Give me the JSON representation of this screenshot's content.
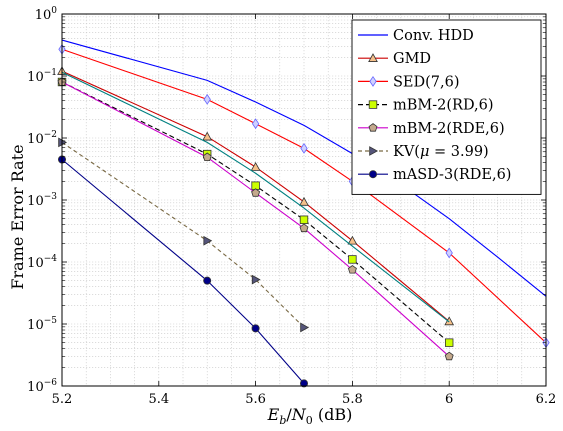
{
  "chart_data": {
    "type": "line",
    "title": "",
    "xlabel": "E_b/N_0 (dB)",
    "xlabel_parts": {
      "var_main": "E",
      "var_sub": "b",
      "slash": "/",
      "var_main2": "N",
      "var_sub2": "0",
      "unit": " (dB)"
    },
    "ylabel": "Frame Error Rate",
    "xlim": [
      5.2,
      6.2
    ],
    "ylim": [
      1e-06,
      1
    ],
    "yscale": "log",
    "grid": true,
    "legend_position": "top-right",
    "x_ticks": [
      {
        "value": 5.2,
        "label": "5.2"
      },
      {
        "value": 5.4,
        "label": "5.4"
      },
      {
        "value": 5.6,
        "label": "5.6"
      },
      {
        "value": 5.8,
        "label": "5.8"
      },
      {
        "value": 6.0,
        "label": "6"
      },
      {
        "value": 6.2,
        "label": "6.2"
      }
    ],
    "y_ticks": [
      {
        "value": 1,
        "base": "10",
        "exp": "0"
      },
      {
        "value": 0.1,
        "base": "10",
        "exp": "−1"
      },
      {
        "value": 0.01,
        "base": "10",
        "exp": "−2"
      },
      {
        "value": 0.001,
        "base": "10",
        "exp": "−3"
      },
      {
        "value": 0.0001,
        "base": "10",
        "exp": "−4"
      },
      {
        "value": 1e-05,
        "base": "10",
        "exp": "−5"
      },
      {
        "value": 1e-06,
        "base": "10",
        "exp": "−6"
      }
    ],
    "series": [
      {
        "name": "Conv. HDD",
        "color": "#0000ff",
        "dash": "none",
        "marker": "none",
        "x": [
          5.2,
          5.5,
          5.6,
          5.7,
          5.8,
          5.9,
          6.0,
          6.1,
          6.2
        ],
        "y": [
          0.38,
          0.085,
          0.038,
          0.016,
          0.0056,
          0.0018,
          0.0005,
          0.00012,
          2.8e-05
        ]
      },
      {
        "name": "GMD",
        "color": "#cc0000",
        "dash": "none",
        "marker": "triangle",
        "markerFill": "#f5c08a",
        "x": [
          5.2,
          5.5,
          5.6,
          5.7,
          5.8,
          6.0
        ],
        "y": [
          0.12,
          0.0105,
          0.0034,
          0.00093,
          0.00022,
          1.1e-05
        ]
      },
      {
        "name": "SED(7,6)",
        "color": "#ff0000",
        "dash": "none",
        "marker": "diamond",
        "markerFill": "#cfd0ff",
        "markerStroke": "#6666ff",
        "x": [
          5.2,
          5.5,
          5.6,
          5.7,
          5.8,
          6.0,
          6.2
        ],
        "y": [
          0.27,
          0.042,
          0.017,
          0.0068,
          0.002,
          0.00014,
          5e-06
        ]
      },
      {
        "name": "mBM-2(RD,6)",
        "color": "#000000",
        "dash": "5,3",
        "marker": "square",
        "markerFill": "#ccff00",
        "x": [
          5.2,
          5.5,
          5.6,
          5.7,
          5.8,
          6.0
        ],
        "y": [
          0.08,
          0.0055,
          0.0017,
          0.00048,
          0.00011,
          5e-06
        ]
      },
      {
        "name": "mBM-2(RDE,6)",
        "color": "#cc00cc",
        "dash": "none",
        "marker": "pentagon",
        "markerFill": "#c4a98d",
        "x": [
          5.2,
          5.5,
          5.6,
          5.7,
          5.8,
          6.0
        ],
        "y": [
          0.08,
          0.0049,
          0.0013,
          0.00035,
          7.5e-05,
          3e-06
        ]
      },
      {
        "name": "KV(μ = 3.99)",
        "nameParts": {
          "pre": "KV(",
          "mu": "μ",
          "post": " = 3.99)"
        },
        "color": "#7a6a45",
        "dash": "4,3",
        "marker": "tri-right",
        "markerFill": "#55557a",
        "x": [
          5.2,
          5.5,
          5.6,
          5.7
        ],
        "y": [
          0.0085,
          0.00022,
          5.2e-05,
          8.8e-06
        ]
      },
      {
        "name": "mASD-3(RDE,6)",
        "color": "#000088",
        "dash": "none",
        "marker": "circle",
        "markerFill": "#000088",
        "x": [
          5.2,
          5.5,
          5.6,
          5.7
        ],
        "y": [
          0.0045,
          5e-05,
          8.5e-06,
          1.1e-06
        ]
      },
      {
        "name": "teal",
        "legend": false,
        "color": "#008080",
        "dash": "none",
        "marker": "none",
        "x": [
          5.2,
          5.5,
          5.6,
          5.7,
          5.8,
          6.0
        ],
        "y": [
          0.115,
          0.0085,
          0.0027,
          0.00074,
          0.00018,
          1.08e-05
        ]
      }
    ]
  }
}
